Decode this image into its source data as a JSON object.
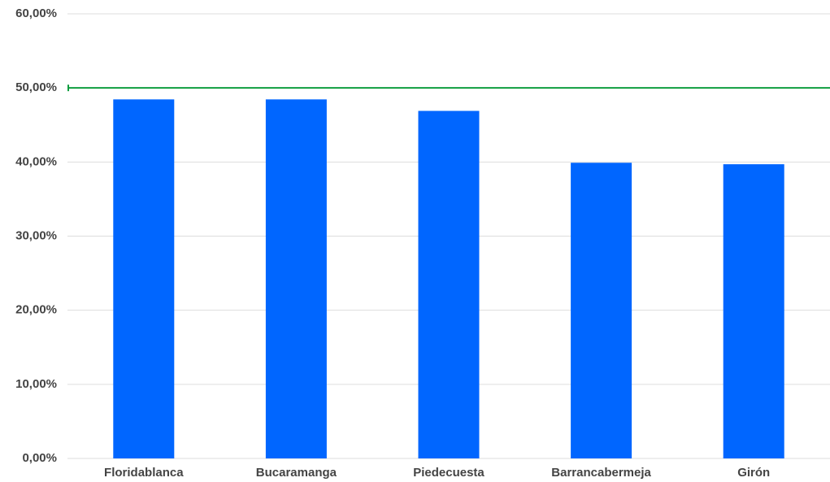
{
  "chart_data": {
    "type": "bar",
    "categories": [
      "Floridablanca",
      "Bucaramanga",
      "Piedecuesta",
      "Barrancabermeja",
      "Girón"
    ],
    "values": [
      48.45,
      48.45,
      46.9,
      39.9,
      39.7
    ],
    "color": "#0066ff",
    "ylim": [
      0,
      60
    ],
    "yticks": [
      {
        "value": 0,
        "label": "0,00%"
      },
      {
        "value": 10,
        "label": "10,00%"
      },
      {
        "value": 20,
        "label": "20,00%"
      },
      {
        "value": 30,
        "label": "30,00%"
      },
      {
        "value": 40,
        "label": "40,00%"
      },
      {
        "value": 50,
        "label": "50,00%"
      },
      {
        "value": 60,
        "label": "60,00%"
      }
    ],
    "grid": true,
    "reference_line": {
      "value": 50,
      "color": "#0f9d3f"
    }
  }
}
